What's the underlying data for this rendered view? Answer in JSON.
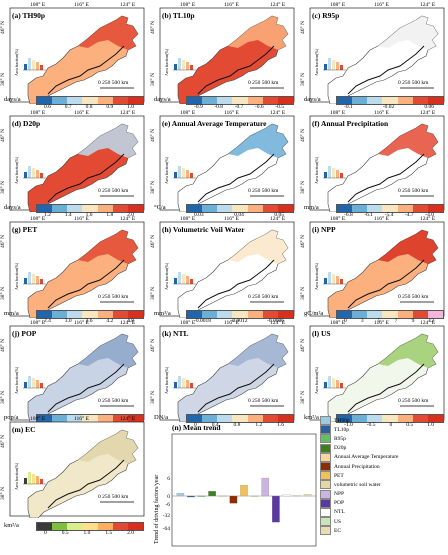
{
  "longitudes": [
    "108° E",
    "116° E",
    "124° E"
  ],
  "latitudes": [
    "46° N",
    "38° N"
  ],
  "scale_bar": "0   250 500 km",
  "inset_ylabel": "Area fraction(%)",
  "panels": [
    {
      "id": "a",
      "title": "(a) TH90p",
      "unit": "days/a",
      "ticks": [
        "0.6",
        "0.7",
        "0.8",
        "0.9",
        "1.0"
      ],
      "colors": [
        "#2166ac",
        "#6baed6",
        "#bcdcee",
        "#f7e7c1",
        "#fbb07e",
        "#e34a33",
        "#d7301f"
      ]
    },
    {
      "id": "b",
      "title": "(b) TL10p",
      "unit": "days/a",
      "ticks": [
        "-0.9",
        "-0.8",
        "-0.7",
        "-0.6",
        "-0.5"
      ],
      "colors": [
        "#2166ac",
        "#6baed6",
        "#bcdcee",
        "#f7e7c1",
        "#fbb07e",
        "#e34a33",
        "#d7301f"
      ]
    },
    {
      "id": "c",
      "title": "(c) R95p",
      "unit": "days/a",
      "ticks": [
        "-0.1",
        "-0.02",
        "0.06"
      ],
      "colors": [
        "#2166ac",
        "#6baed6",
        "#bcdcee",
        "#f7e7c1",
        "#fbb07e",
        "#e34a33",
        "#d7301f"
      ]
    },
    {
      "id": "d",
      "title": "(d) D20p",
      "unit": "days/a",
      "ticks": [
        "1.2",
        "1.4",
        "1.6",
        "1.8",
        "2.0"
      ],
      "colors": [
        "#2166ac",
        "#6baed6",
        "#bcdcee",
        "#f7e7c1",
        "#fbb07e",
        "#e34a33",
        "#d7301f"
      ]
    },
    {
      "id": "e",
      "title": "(e) Annual Average Temperature",
      "unit": "°C/a",
      "ticks": [
        "0.03",
        "0.04",
        "0.05"
      ],
      "colors": [
        "#2166ac",
        "#6baed6",
        "#bcdcee",
        "#f7e7c1",
        "#fbb07e",
        "#e34a33",
        "#d7301f"
      ]
    },
    {
      "id": "f",
      "title": "(f) Annual Precipitation",
      "unit": "mm/a",
      "ticks": [
        "-6.8",
        "-6.1",
        "-5.4",
        "-4.7",
        "-4.0"
      ],
      "colors": [
        "#2166ac",
        "#6baed6",
        "#bcdcee",
        "#f7e7c1",
        "#fbb07e",
        "#e34a33",
        "#d7301f"
      ]
    },
    {
      "id": "g",
      "title": "(g) PET",
      "unit": "mm/a",
      "ticks": [
        "2.4",
        "3.0",
        "3.6",
        "4.2",
        "4.8"
      ],
      "colors": [
        "#2166ac",
        "#6baed6",
        "#bcdcee",
        "#f7e7c1",
        "#fbb07e",
        "#e34a33",
        "#d7301f"
      ]
    },
    {
      "id": "h",
      "title": "(h) Volumetric Voil Water",
      "unit": "mm³/a",
      "ticks": [
        "-0.0018",
        "-0.0012",
        "-0.0006"
      ],
      "colors": [
        "#2166ac",
        "#6baed6",
        "#bcdcee",
        "#f7e7c1",
        "#fbb07e",
        "#e34a33",
        "#d7301f"
      ]
    },
    {
      "id": "i",
      "title": "(i) NPP",
      "unit": "gC/m²a",
      "ticks": [
        "0",
        "3",
        "5",
        "7",
        "9",
        "12"
      ],
      "colors": [
        "#2166ac",
        "#6baed6",
        "#bcdcee",
        "#f7e7c1",
        "#fbb07e",
        "#e34a33",
        "#f3b5d9"
      ]
    },
    {
      "id": "j",
      "title": "(j) POP",
      "unit": "pop/a",
      "ticks": [
        "-100",
        "0",
        "100",
        "200",
        "300"
      ],
      "colors": [
        "#2166ac",
        "#6baed6",
        "#bcdcee",
        "#f7e7c1",
        "#fbb07e",
        "#e34a33",
        "#d7301f"
      ]
    },
    {
      "id": "k",
      "title": "(k) NTL",
      "unit": "DN/a",
      "ticks": [
        "0",
        "0.4",
        "0.8",
        "1.2",
        "1.6"
      ],
      "colors": [
        "#2166ac",
        "#6baed6",
        "#bcdcee",
        "#f7e7c1",
        "#fbb07e",
        "#e34a33",
        "#d7301f"
      ]
    },
    {
      "id": "l",
      "title": "(l) US",
      "unit": "km²/a",
      "ticks": [
        "-1.0",
        "-0.5",
        "0",
        "0.5",
        "1.0"
      ],
      "colors": [
        "#2166ac",
        "#6baed6",
        "#bcdcee",
        "#f7e7c1",
        "#fbb07e",
        "#e34a33",
        "#d7301f"
      ]
    },
    {
      "id": "m",
      "title": "(m) EC",
      "unit": "km²/a",
      "ticks": [
        "0",
        "0.5",
        "1.0",
        "1.5",
        "2.0"
      ],
      "colors": [
        "#3a3a3a",
        "#7fbf3f",
        "#d9ef8b",
        "#fee08b",
        "#fdae61",
        "#e34a33",
        "#d7301f"
      ]
    }
  ],
  "chart_data": {
    "type": "bar",
    "title": "(n) Mean trend",
    "ylabel": "Trend of driving factors/year",
    "yticks": [
      "6",
      "0",
      "-6",
      "-32",
      "-64"
    ],
    "categories": [
      "TH90p",
      "TL10p",
      "R95p",
      "D20p",
      "Annual Average Temperature",
      "Annual Precipitation",
      "PET",
      "volumetric soil water",
      "NPP",
      "POP",
      "NTL",
      "US",
      "EC"
    ],
    "values": [
      0.9,
      -0.8,
      0.05,
      1.6,
      0.04,
      -5.5,
      3.6,
      -0.0012,
      6.0,
      -50,
      0.5,
      0.2,
      0.6
    ],
    "colors": [
      "#9ecae1",
      "#2c5f9e",
      "#66bd63",
      "#3f7f1f",
      "#fdd49e",
      "#8c2d04",
      "#f0c05a",
      "#e8d7a0",
      "#cbb5e0",
      "#5a3aa0",
      "#ffffff",
      "#c8e6b8",
      "#e8dcb0"
    ]
  }
}
